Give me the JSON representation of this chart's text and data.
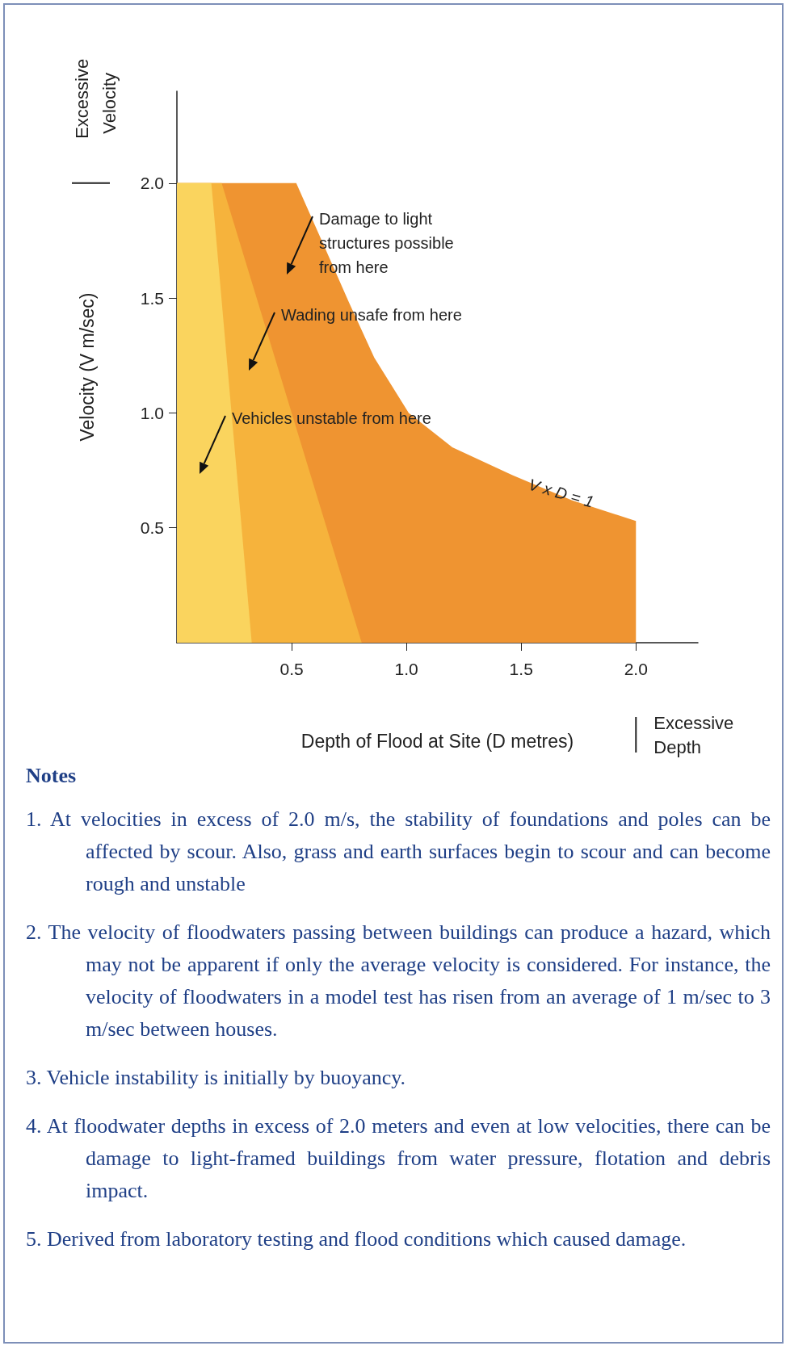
{
  "chart_data": {
    "type": "area",
    "xlabel": "Depth of Flood at Site (D metres)",
    "ylabel": "Velocity (V m/sec)",
    "xlim": [
      0,
      2.27
    ],
    "ylim": [
      0,
      2.4
    ],
    "xticks": [
      0.5,
      {
        "value": 1,
        "label": "1.0"
      },
      1.5,
      {
        "value": 2,
        "label": "2.0"
      }
    ],
    "yticks": [
      0.5,
      {
        "value": 1,
        "label": "1.0"
      },
      1.5,
      {
        "value": 2,
        "label": "2.0"
      }
    ],
    "series": [
      {
        "name": "V x D = 1",
        "color": "#ef9431",
        "x": [
          0,
          0.52,
          0.64,
          0.75,
          0.86,
          1.01,
          1.2,
          1.46,
          1.72,
          2.0,
          2.0
        ],
        "values": [
          2.0,
          2.0,
          1.73,
          1.48,
          1.24,
          1.0,
          0.85,
          0.73,
          0.62,
          0.53,
          0
        ]
      },
      {
        "color": "#f6b33c",
        "x": [
          0,
          0.195,
          0.805
        ],
        "values": [
          2.0,
          2.0,
          0
        ]
      },
      {
        "color": "#fad45e",
        "x": [
          0,
          0.15,
          0.326
        ],
        "values": [
          2.0,
          2.0,
          0
        ]
      }
    ],
    "annotations": [
      "Excessive Velocity",
      "Excessive Depth",
      "Damage to light structures possible from here",
      "Wading unsafe from here",
      "Vehicles unstable from here",
      "Notes",
      "1. At velocities in excess of 2.0 m/s, the stability of foundations and poles can be affected by scour. Also, grass and earth surfaces begin to scour and can become rough and unstable",
      "2. The velocity of floodwaters passing between buildings can produce a hazard, which may not be apparent if only the average velocity is considered. For instance, the velocity of floodwaters in a model test has risen from an average of 1 m/sec to 3 m/sec between houses.",
      "3. Vehicle instability is initially by buoyancy.",
      "4. At floodwater depths in excess of 2.0 meters and even at low velocities, there can be damage to light-framed buildings from water pressure, flotation and debris impact.",
      "5. Derived from laboratory testing and flood conditions which caused damage."
    ]
  }
}
